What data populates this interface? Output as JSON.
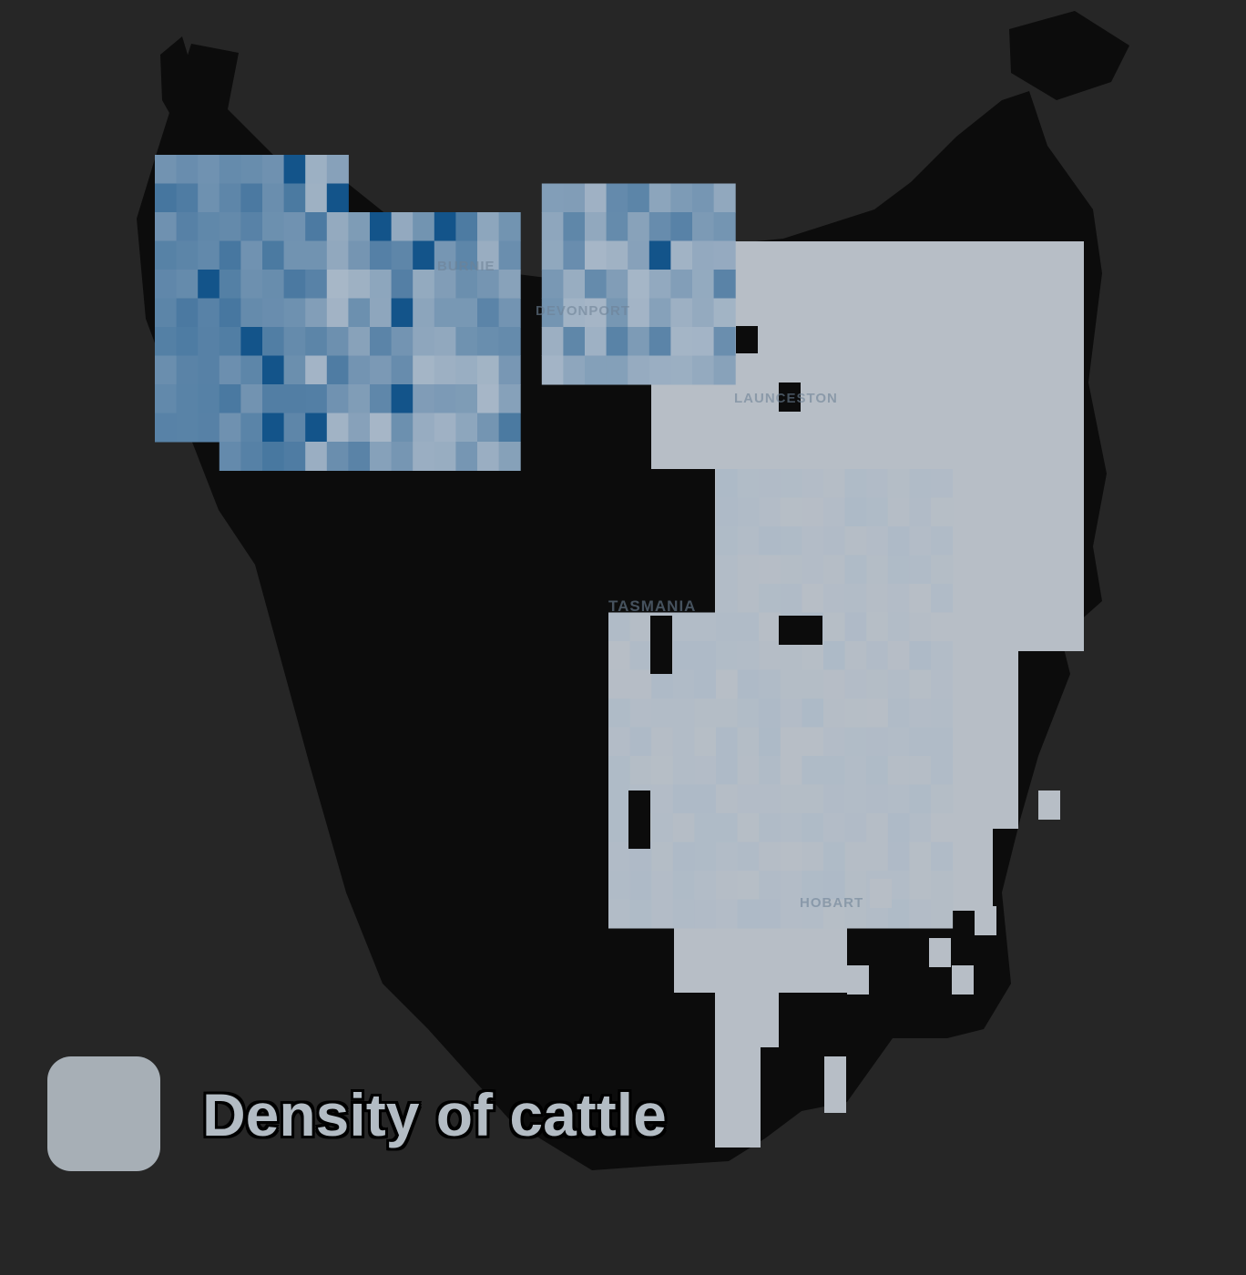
{
  "map": {
    "background_color": "#262626",
    "land_color": "#0c0c0c",
    "base_cell_color": "#b7bec6",
    "low_color": "#a9b8c8",
    "high_color": "#0b4f87",
    "places": [
      {
        "id": "burnie",
        "label": "BURNIE"
      },
      {
        "id": "devonport",
        "label": "DEVONPORT"
      },
      {
        "id": "launceston",
        "label": "LAUNCESTON"
      },
      {
        "id": "tasmania",
        "label": "TASMANIA"
      },
      {
        "id": "hobart",
        "label": "HOBART"
      }
    ]
  },
  "legend": {
    "swatch_color": "#a7afb6",
    "label": "Density of cattle"
  }
}
